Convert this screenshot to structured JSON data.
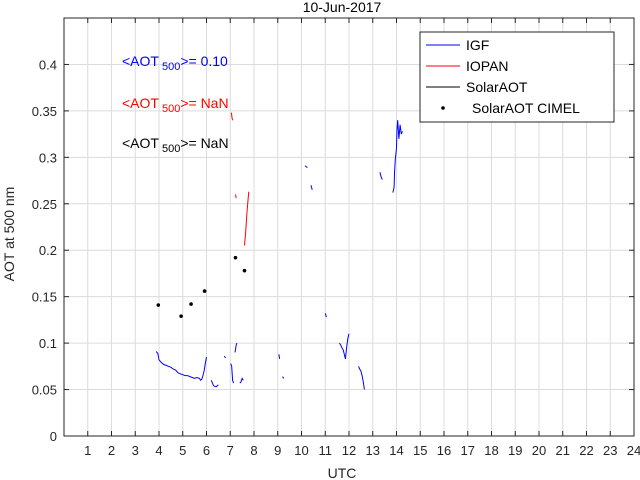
{
  "chart_data": {
    "type": "line",
    "title": "10-Jun-2017",
    "xlabel": "UTC",
    "ylabel": "AOT at 500 nm",
    "xlim": [
      0,
      24
    ],
    "ylim": [
      0,
      0.45
    ],
    "xticks": [
      1,
      2,
      3,
      4,
      5,
      6,
      7,
      8,
      9,
      10,
      11,
      12,
      13,
      14,
      15,
      16,
      17,
      18,
      19,
      20,
      21,
      22,
      23,
      24
    ],
    "yticks": [
      0,
      0.05,
      0.1,
      0.15,
      0.2,
      0.25,
      0.3,
      0.35,
      0.4
    ],
    "ytick_labels": [
      "0",
      "0.05",
      "0.1",
      "0.15",
      "0.2",
      "0.25",
      "0.3",
      "0.35",
      "0.4"
    ],
    "grid": true,
    "legend_position": "top-right",
    "legend": [
      {
        "name": "IGF",
        "color": "#0000ff",
        "marker": "line"
      },
      {
        "name": "IOPAN",
        "color": "#ff0000",
        "marker": "line"
      },
      {
        "name": "SolarAOT",
        "color": "#000000",
        "marker": "line"
      },
      {
        "name": "SolarAOT CIMEL",
        "color": "#000000",
        "marker": "dot"
      }
    ],
    "annotations": [
      {
        "prefix": "<AOT",
        "sub": "500",
        "suffix": ">= 0.10",
        "color": "#0000ff"
      },
      {
        "prefix": "<AOT",
        "sub": "500",
        "suffix": ">=  NaN",
        "color": "#ff0000"
      },
      {
        "prefix": "<AOT",
        "sub": "500",
        "suffix": ">=  NaN",
        "color": "#000000"
      }
    ],
    "series": [
      {
        "name": "IGF",
        "color": "#0000ff",
        "segments": [
          [
            [
              3.88,
              0.091
            ],
            [
              3.95,
              0.089
            ],
            [
              4.0,
              0.082
            ],
            [
              4.1,
              0.079
            ],
            [
              4.2,
              0.077
            ],
            [
              4.3,
              0.076
            ],
            [
              4.4,
              0.075
            ],
            [
              4.5,
              0.074
            ],
            [
              4.6,
              0.072
            ],
            [
              4.7,
              0.071
            ],
            [
              4.8,
              0.068
            ],
            [
              4.9,
              0.067
            ],
            [
              5.0,
              0.066
            ],
            [
              5.1,
              0.065
            ],
            [
              5.2,
              0.065
            ],
            [
              5.3,
              0.064
            ],
            [
              5.4,
              0.063
            ],
            [
              5.5,
              0.062
            ],
            [
              5.6,
              0.063
            ],
            [
              5.7,
              0.062
            ],
            [
              5.75,
              0.06
            ],
            [
              5.8,
              0.061
            ],
            [
              5.85,
              0.065
            ],
            [
              5.9,
              0.07
            ],
            [
              5.95,
              0.078
            ],
            [
              6.0,
              0.085
            ]
          ],
          [
            [
              6.2,
              0.06
            ],
            [
              6.25,
              0.057
            ],
            [
              6.3,
              0.054
            ],
            [
              6.4,
              0.053
            ],
            [
              6.5,
              0.055
            ]
          ],
          [
            [
              6.75,
              0.086
            ],
            [
              6.8,
              0.084
            ]
          ],
          [
            [
              7.02,
              0.078
            ],
            [
              7.06,
              0.075
            ],
            [
              7.1,
              0.06
            ],
            [
              7.14,
              0.057
            ]
          ],
          [
            [
              7.2,
              0.09
            ],
            [
              7.25,
              0.098
            ],
            [
              7.28,
              0.1
            ]
          ],
          [
            [
              7.4,
              0.057
            ],
            [
              7.45,
              0.058
            ],
            [
              7.5,
              0.062
            ],
            [
              7.55,
              0.06
            ]
          ],
          [
            [
              9.05,
              0.088
            ],
            [
              9.08,
              0.083
            ]
          ],
          [
            [
              9.2,
              0.064
            ],
            [
              9.25,
              0.062
            ]
          ],
          [
            [
              10.15,
              0.291
            ],
            [
              10.25,
              0.289
            ]
          ],
          [
            [
              10.4,
              0.27
            ],
            [
              10.45,
              0.265
            ]
          ],
          [
            [
              11.0,
              0.132
            ],
            [
              11.05,
              0.128
            ]
          ],
          [
            [
              11.6,
              0.1
            ],
            [
              11.65,
              0.098
            ],
            [
              11.7,
              0.095
            ],
            [
              11.75,
              0.093
            ],
            [
              11.8,
              0.088
            ],
            [
              11.85,
              0.083
            ],
            [
              11.9,
              0.095
            ],
            [
              11.95,
              0.105
            ],
            [
              12.0,
              0.11
            ]
          ],
          [
            [
              12.4,
              0.075
            ],
            [
              12.45,
              0.072
            ],
            [
              12.5,
              0.07
            ],
            [
              12.55,
              0.065
            ],
            [
              12.6,
              0.058
            ],
            [
              12.65,
              0.05
            ]
          ],
          [
            [
              13.3,
              0.284
            ],
            [
              13.35,
              0.279
            ],
            [
              13.4,
              0.276
            ]
          ],
          [
            [
              13.85,
              0.262
            ],
            [
              13.9,
              0.268
            ],
            [
              13.92,
              0.285
            ],
            [
              13.95,
              0.298
            ],
            [
              14.0,
              0.31
            ],
            [
              14.02,
              0.33
            ],
            [
              14.05,
              0.34
            ],
            [
              14.1,
              0.32
            ],
            [
              14.15,
              0.335
            ],
            [
              14.2,
              0.325
            ],
            [
              14.25,
              0.328
            ]
          ]
        ]
      },
      {
        "name": "IOPAN",
        "color": "#ff0000",
        "segments": [
          [
            [
              7.05,
              0.348
            ],
            [
              7.08,
              0.342
            ],
            [
              7.1,
              0.34
            ]
          ],
          [
            [
              7.22,
              0.26
            ],
            [
              7.25,
              0.256
            ]
          ],
          [
            [
              7.6,
              0.205
            ],
            [
              7.65,
              0.22
            ],
            [
              7.7,
              0.24
            ],
            [
              7.75,
              0.255
            ],
            [
              7.78,
              0.263
            ]
          ]
        ]
      }
    ],
    "cimel_points": [
      [
        3.97,
        0.141
      ],
      [
        4.93,
        0.129
      ],
      [
        5.35,
        0.142
      ],
      [
        5.92,
        0.156
      ],
      [
        7.22,
        0.192
      ],
      [
        7.6,
        0.178
      ]
    ]
  }
}
